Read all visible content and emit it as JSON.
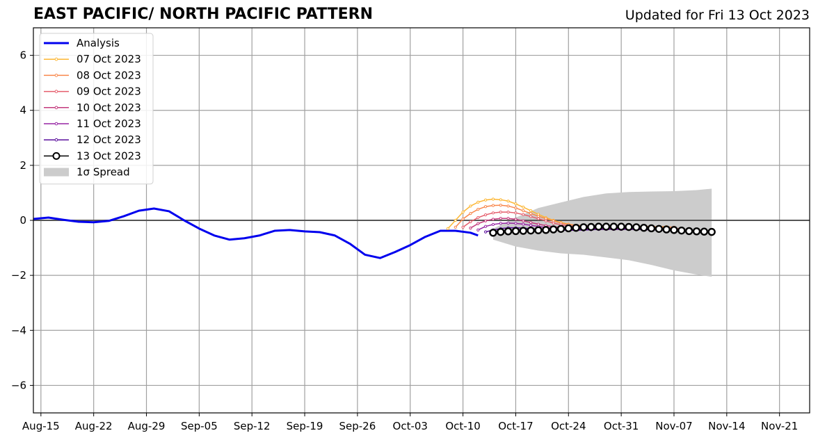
{
  "title": "EAST PACIFIC/ NORTH PACIFIC PATTERN",
  "subtitle": "Updated for Fri 13 Oct 2023",
  "chart_data": {
    "type": "line",
    "title": "EAST PACIFIC/ NORTH PACIFIC PATTERN",
    "xlabel": "",
    "ylabel": "",
    "xlim": [
      "2023-08-14",
      "2023-11-25"
    ],
    "ylim": [
      -7,
      7
    ],
    "grid": true,
    "legend_position": "top-left",
    "x_ticks": [
      "Aug-15",
      "Aug-22",
      "Aug-29",
      "Sep-05",
      "Sep-12",
      "Sep-19",
      "Sep-26",
      "Oct-03",
      "Oct-10",
      "Oct-17",
      "Oct-24",
      "Oct-31",
      "Nov-07",
      "Nov-14",
      "Nov-21"
    ],
    "x_tick_dates": [
      "2023-08-15",
      "2023-08-22",
      "2023-08-29",
      "2023-09-05",
      "2023-09-12",
      "2023-09-19",
      "2023-09-26",
      "2023-10-03",
      "2023-10-10",
      "2023-10-17",
      "2023-10-24",
      "2023-10-31",
      "2023-11-07",
      "2023-11-14",
      "2023-11-21"
    ],
    "y_ticks": [
      -6,
      -4,
      -2,
      0,
      2,
      4,
      6
    ],
    "y_tick_labels": [
      "−6",
      "−4",
      "−2",
      "0",
      "2",
      "4",
      "6"
    ],
    "series": [
      {
        "name": "Analysis",
        "color": "#0000ee",
        "markers": false,
        "x": [
          "2023-08-14",
          "2023-08-16",
          "2023-08-18",
          "2023-08-20",
          "2023-08-22",
          "2023-08-24",
          "2023-08-26",
          "2023-08-28",
          "2023-08-30",
          "2023-09-01",
          "2023-09-03",
          "2023-09-05",
          "2023-09-07",
          "2023-09-09",
          "2023-09-11",
          "2023-09-13",
          "2023-09-15",
          "2023-09-17",
          "2023-09-19",
          "2023-09-21",
          "2023-09-23",
          "2023-09-25",
          "2023-09-27",
          "2023-09-29",
          "2023-10-01",
          "2023-10-03",
          "2023-10-05",
          "2023-10-07",
          "2023-10-09",
          "2023-10-11",
          "2023-10-12"
        ],
        "values": [
          0.05,
          0.1,
          0.02,
          -0.05,
          -0.07,
          -0.02,
          0.15,
          0.35,
          0.43,
          0.33,
          0.0,
          -0.3,
          -0.55,
          -0.7,
          -0.65,
          -0.55,
          -0.38,
          -0.35,
          -0.4,
          -0.43,
          -0.55,
          -0.85,
          -1.25,
          -1.37,
          -1.15,
          -0.9,
          -0.6,
          -0.38,
          -0.38,
          -0.45,
          -0.55
        ]
      },
      {
        "name": "07 Oct 2023",
        "color": "#fcb632",
        "markers": true,
        "x": [
          "2023-10-08",
          "2023-10-09",
          "2023-10-10",
          "2023-10-11",
          "2023-10-12",
          "2023-10-13",
          "2023-10-14",
          "2023-10-15",
          "2023-10-16",
          "2023-10-17",
          "2023-10-18",
          "2023-10-19",
          "2023-10-20",
          "2023-10-21",
          "2023-10-22",
          "2023-10-23",
          "2023-10-24",
          "2023-10-25",
          "2023-10-26",
          "2023-10-27",
          "2023-10-28",
          "2023-10-29",
          "2023-10-30",
          "2023-10-31",
          "2023-11-01",
          "2023-11-02",
          "2023-11-03",
          "2023-11-04",
          "2023-11-05",
          "2023-11-06"
        ],
        "values": [
          -0.3,
          0.0,
          0.3,
          0.52,
          0.66,
          0.74,
          0.77,
          0.75,
          0.7,
          0.6,
          0.48,
          0.35,
          0.22,
          0.1,
          0.0,
          -0.08,
          -0.14,
          -0.18,
          -0.2,
          -0.21,
          -0.22,
          -0.22,
          -0.22,
          -0.22,
          -0.22,
          -0.22,
          -0.22,
          -0.23,
          -0.23,
          -0.23
        ]
      },
      {
        "name": "08 Oct 2023",
        "color": "#f8864a",
        "markers": true,
        "x": [
          "2023-10-09",
          "2023-10-10",
          "2023-10-11",
          "2023-10-12",
          "2023-10-13",
          "2023-10-14",
          "2023-10-15",
          "2023-10-16",
          "2023-10-17",
          "2023-10-18",
          "2023-10-19",
          "2023-10-20",
          "2023-10-21",
          "2023-10-22",
          "2023-10-23",
          "2023-10-24",
          "2023-10-25",
          "2023-10-26",
          "2023-10-27",
          "2023-10-28",
          "2023-10-29",
          "2023-10-30",
          "2023-10-31",
          "2023-11-01",
          "2023-11-02",
          "2023-11-03",
          "2023-11-04",
          "2023-11-05",
          "2023-11-06",
          "2023-11-07"
        ],
        "values": [
          -0.25,
          0.05,
          0.25,
          0.4,
          0.5,
          0.54,
          0.55,
          0.52,
          0.45,
          0.35,
          0.25,
          0.15,
          0.06,
          -0.02,
          -0.1,
          -0.15,
          -0.18,
          -0.2,
          -0.21,
          -0.22,
          -0.22,
          -0.22,
          -0.22,
          -0.22,
          -0.23,
          -0.23,
          -0.23,
          -0.24,
          -0.24,
          -0.25
        ]
      },
      {
        "name": "09 Oct 2023",
        "color": "#e55c6b",
        "markers": true,
        "x": [
          "2023-10-10",
          "2023-10-11",
          "2023-10-12",
          "2023-10-13",
          "2023-10-14",
          "2023-10-15",
          "2023-10-16",
          "2023-10-17",
          "2023-10-18",
          "2023-10-19",
          "2023-10-20",
          "2023-10-21",
          "2023-10-22",
          "2023-10-23",
          "2023-10-24",
          "2023-10-25",
          "2023-10-26",
          "2023-10-27",
          "2023-10-28",
          "2023-10-29",
          "2023-10-30",
          "2023-10-31",
          "2023-11-01",
          "2023-11-02",
          "2023-11-03",
          "2023-11-04",
          "2023-11-05",
          "2023-11-06",
          "2023-11-07",
          "2023-11-08"
        ],
        "values": [
          -0.25,
          -0.05,
          0.1,
          0.2,
          0.27,
          0.3,
          0.3,
          0.27,
          0.21,
          0.14,
          0.06,
          -0.02,
          -0.1,
          -0.16,
          -0.2,
          -0.23,
          -0.24,
          -0.25,
          -0.25,
          -0.25,
          -0.25,
          -0.26,
          -0.26,
          -0.27,
          -0.27,
          -0.28,
          -0.28,
          -0.29,
          -0.3,
          -0.3
        ]
      },
      {
        "name": "10 Oct 2023",
        "color": "#c3397c",
        "markers": true,
        "x": [
          "2023-10-11",
          "2023-10-12",
          "2023-10-13",
          "2023-10-14",
          "2023-10-15",
          "2023-10-16",
          "2023-10-17",
          "2023-10-18",
          "2023-10-19",
          "2023-10-20",
          "2023-10-21",
          "2023-10-22",
          "2023-10-23",
          "2023-10-24",
          "2023-10-25",
          "2023-10-26",
          "2023-10-27",
          "2023-10-28",
          "2023-10-29",
          "2023-10-30",
          "2023-10-31",
          "2023-11-01",
          "2023-11-02",
          "2023-11-03",
          "2023-11-04",
          "2023-11-05",
          "2023-11-06",
          "2023-11-07",
          "2023-11-08",
          "2023-11-09"
        ],
        "values": [
          -0.28,
          -0.12,
          -0.02,
          0.04,
          0.07,
          0.07,
          0.04,
          -0.02,
          -0.08,
          -0.14,
          -0.19,
          -0.23,
          -0.26,
          -0.28,
          -0.29,
          -0.3,
          -0.3,
          -0.3,
          -0.3,
          -0.3,
          -0.31,
          -0.31,
          -0.32,
          -0.32,
          -0.33,
          -0.33,
          -0.34,
          -0.35,
          -0.35,
          -0.36
        ]
      },
      {
        "name": "11 Oct 2023",
        "color": "#9624a4",
        "markers": true,
        "x": [
          "2023-10-12",
          "2023-10-13",
          "2023-10-14",
          "2023-10-15",
          "2023-10-16",
          "2023-10-17",
          "2023-10-18",
          "2023-10-19",
          "2023-10-20",
          "2023-10-21",
          "2023-10-22",
          "2023-10-23",
          "2023-10-24",
          "2023-10-25",
          "2023-10-26",
          "2023-10-27",
          "2023-10-28",
          "2023-10-29",
          "2023-10-30",
          "2023-10-31",
          "2023-11-01",
          "2023-11-02",
          "2023-11-03",
          "2023-11-04",
          "2023-11-05",
          "2023-11-06",
          "2023-11-07",
          "2023-11-08",
          "2023-11-09",
          "2023-11-10"
        ],
        "values": [
          -0.35,
          -0.22,
          -0.15,
          -0.11,
          -0.1,
          -0.11,
          -0.14,
          -0.18,
          -0.22,
          -0.26,
          -0.29,
          -0.31,
          -0.32,
          -0.33,
          -0.33,
          -0.33,
          -0.33,
          -0.33,
          -0.33,
          -0.33,
          -0.33,
          -0.33,
          -0.34,
          -0.34,
          -0.35,
          -0.35,
          -0.36,
          -0.36,
          -0.37,
          -0.37
        ]
      },
      {
        "name": "12 Oct 2023",
        "color": "#5a0d9c",
        "markers": true,
        "x": [
          "2023-10-13",
          "2023-10-14",
          "2023-10-15",
          "2023-10-16",
          "2023-10-17",
          "2023-10-18",
          "2023-10-19",
          "2023-10-20",
          "2023-10-21",
          "2023-10-22",
          "2023-10-23",
          "2023-10-24",
          "2023-10-25",
          "2023-10-26",
          "2023-10-27",
          "2023-10-28",
          "2023-10-29",
          "2023-10-30",
          "2023-10-31",
          "2023-11-01",
          "2023-11-02",
          "2023-11-03",
          "2023-11-04",
          "2023-11-05",
          "2023-11-06",
          "2023-11-07",
          "2023-11-08",
          "2023-11-09",
          "2023-11-10",
          "2023-11-11"
        ],
        "values": [
          -0.42,
          -0.35,
          -0.3,
          -0.27,
          -0.27,
          -0.28,
          -0.3,
          -0.32,
          -0.34,
          -0.35,
          -0.36,
          -0.36,
          -0.36,
          -0.35,
          -0.34,
          -0.33,
          -0.32,
          -0.32,
          -0.32,
          -0.32,
          -0.33,
          -0.33,
          -0.34,
          -0.35,
          -0.36,
          -0.37,
          -0.38,
          -0.39,
          -0.4,
          -0.4
        ]
      },
      {
        "name": "13 Oct 2023",
        "color": "#000000",
        "markers": true,
        "big_markers": true,
        "x": [
          "2023-10-14",
          "2023-10-15",
          "2023-10-16",
          "2023-10-17",
          "2023-10-18",
          "2023-10-19",
          "2023-10-20",
          "2023-10-21",
          "2023-10-22",
          "2023-10-23",
          "2023-10-24",
          "2023-10-25",
          "2023-10-26",
          "2023-10-27",
          "2023-10-28",
          "2023-10-29",
          "2023-10-30",
          "2023-10-31",
          "2023-11-01",
          "2023-11-02",
          "2023-11-03",
          "2023-11-04",
          "2023-11-05",
          "2023-11-06",
          "2023-11-07",
          "2023-11-08",
          "2023-11-09",
          "2023-11-10",
          "2023-11-11",
          "2023-11-12"
        ],
        "values": [
          -0.45,
          -0.42,
          -0.4,
          -0.39,
          -0.38,
          -0.37,
          -0.36,
          -0.35,
          -0.33,
          -0.31,
          -0.29,
          -0.27,
          -0.25,
          -0.24,
          -0.23,
          -0.23,
          -0.23,
          -0.23,
          -0.24,
          -0.25,
          -0.27,
          -0.29,
          -0.31,
          -0.33,
          -0.35,
          -0.37,
          -0.39,
          -0.4,
          -0.41,
          -0.42
        ]
      }
    ],
    "spread": {
      "name": "1σ Spread",
      "color": "#cccccc",
      "x": [
        "2023-10-14",
        "2023-10-17",
        "2023-10-20",
        "2023-10-23",
        "2023-10-26",
        "2023-10-29",
        "2023-11-01",
        "2023-11-04",
        "2023-11-07",
        "2023-11-10",
        "2023-11-12"
      ],
      "upper": [
        -0.3,
        0.1,
        0.45,
        0.65,
        0.85,
        0.98,
        1.03,
        1.05,
        1.06,
        1.1,
        1.15
      ],
      "lower": [
        -0.7,
        -0.95,
        -1.1,
        -1.2,
        -1.25,
        -1.35,
        -1.45,
        -1.62,
        -1.82,
        -1.97,
        -2.05
      ]
    },
    "legend": [
      {
        "label": "Analysis",
        "color": "#0000ee",
        "style": "line"
      },
      {
        "label": "07 Oct 2023",
        "color": "#fcb632",
        "style": "dot"
      },
      {
        "label": "08 Oct 2023",
        "color": "#f8864a",
        "style": "dot"
      },
      {
        "label": "09 Oct 2023",
        "color": "#e55c6b",
        "style": "dot"
      },
      {
        "label": "10 Oct 2023",
        "color": "#c3397c",
        "style": "dot"
      },
      {
        "label": "11 Oct 2023",
        "color": "#9624a4",
        "style": "dot"
      },
      {
        "label": "12 Oct 2023",
        "color": "#5a0d9c",
        "style": "dot"
      },
      {
        "label": "13 Oct 2023",
        "color": "#000000",
        "style": "bigdot"
      },
      {
        "label": "1σ Spread",
        "color": "#cccccc",
        "style": "patch"
      }
    ]
  }
}
